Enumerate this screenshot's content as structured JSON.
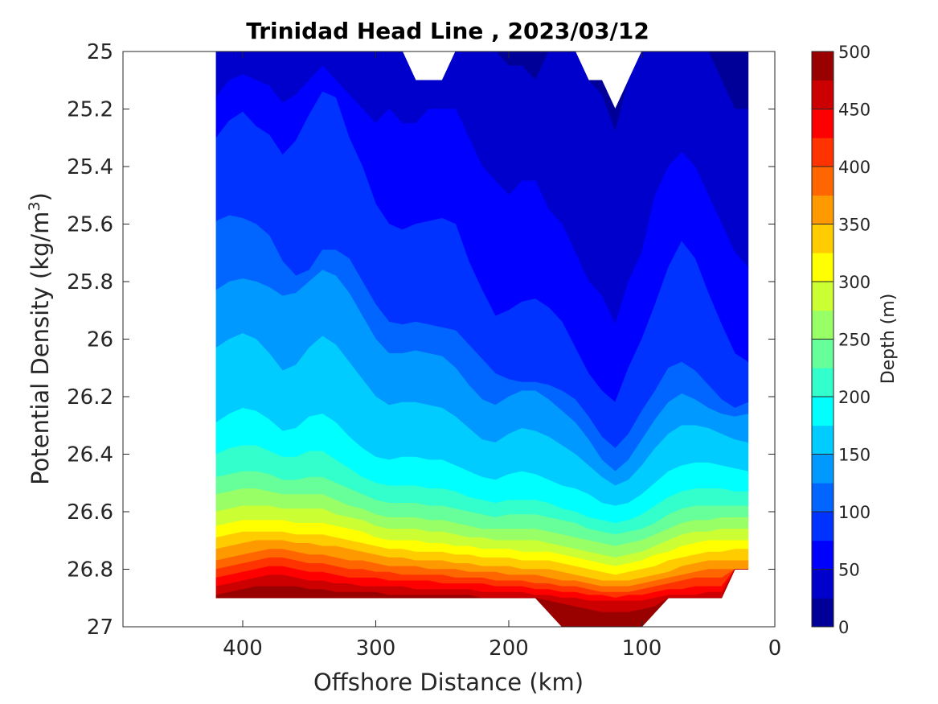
{
  "chart_data": {
    "type": "contour",
    "title": "Trinidad Head Line , 2023/03/12",
    "xlabel": "Offshore Distance (km)",
    "ylabel_main": "Potential Density (kg/m",
    "ylabel_sup": "3",
    "ylabel_tail": ")",
    "xlim": [
      490,
      0
    ],
    "ylim": [
      25,
      27
    ],
    "x_reversed": true,
    "y_reversed": true,
    "x_ticks": [
      "400",
      "300",
      "200",
      "100",
      "0"
    ],
    "y_ticks": [
      "25",
      "25.2",
      "25.4",
      "25.6",
      "25.8",
      "26",
      "26.2",
      "26.4",
      "26.6",
      "26.8",
      "27"
    ],
    "colorbar": {
      "label": "Depth (m)",
      "range": [
        0,
        500
      ],
      "ticks": [
        "0",
        "50",
        "100",
        "150",
        "200",
        "250",
        "300",
        "350",
        "400",
        "450",
        "500"
      ],
      "levels": 20,
      "colormap": "jet"
    },
    "x_stations": [
      420,
      410,
      400,
      390,
      380,
      370,
      360,
      350,
      340,
      330,
      320,
      310,
      300,
      290,
      280,
      270,
      260,
      250,
      240,
      230,
      220,
      210,
      200,
      190,
      180,
      170,
      160,
      150,
      140,
      130,
      120,
      110,
      100,
      90,
      80,
      70,
      60,
      50,
      40,
      30,
      20
    ],
    "depth_contours": [
      {
        "depth": 25,
        "density": [
          24.8,
          24.9,
          24.95,
          25.0,
          24.95,
          24.9,
          24.95,
          25.0,
          24.95,
          24.85,
          24.9,
          24.95,
          24.95,
          25.0,
          25.0,
          25.1,
          25.1,
          25.0,
          24.95,
          24.95,
          25.0,
          25.0,
          25.05,
          25.05,
          25.1,
          25.0,
          25.0,
          25.0,
          25.1,
          25.15,
          25.28,
          25.1,
          25.0,
          25.0,
          24.9,
          25.0,
          25.0,
          25.0,
          25.1,
          25.2,
          25.2
        ]
      },
      {
        "depth": 50,
        "density": [
          25.16,
          25.1,
          25.08,
          25.1,
          25.12,
          25.18,
          25.15,
          25.1,
          25.05,
          25.1,
          25.15,
          25.2,
          25.25,
          25.2,
          25.25,
          25.25,
          25.2,
          25.2,
          25.2,
          25.3,
          25.4,
          25.45,
          25.5,
          25.45,
          25.45,
          25.55,
          25.6,
          25.7,
          25.8,
          25.85,
          25.95,
          25.8,
          25.7,
          25.5,
          25.4,
          25.35,
          25.4,
          25.5,
          25.6,
          25.7,
          25.75
        ]
      },
      {
        "depth": 75,
        "density": [
          25.3,
          25.24,
          25.21,
          25.26,
          25.29,
          25.36,
          25.31,
          25.22,
          25.14,
          25.16,
          25.3,
          25.4,
          25.53,
          25.6,
          25.62,
          25.6,
          25.59,
          25.58,
          25.6,
          25.73,
          25.83,
          25.92,
          25.9,
          25.87,
          25.86,
          25.89,
          25.94,
          26.03,
          26.12,
          26.18,
          26.22,
          26.1,
          26.0,
          25.88,
          25.75,
          25.66,
          25.72,
          25.84,
          25.95,
          26.05,
          26.08
        ]
      },
      {
        "depth": 100,
        "density": [
          25.59,
          25.57,
          25.58,
          25.6,
          25.64,
          25.73,
          25.78,
          25.76,
          25.69,
          25.69,
          25.72,
          25.8,
          25.88,
          25.94,
          25.95,
          25.94,
          25.95,
          25.96,
          25.97,
          26.02,
          26.07,
          26.12,
          26.14,
          26.15,
          26.15,
          26.16,
          26.18,
          26.21,
          26.27,
          26.34,
          26.38,
          26.33,
          26.25,
          26.18,
          26.1,
          26.08,
          26.11,
          26.16,
          26.21,
          26.24,
          26.22
        ]
      },
      {
        "depth": 125,
        "density": [
          25.83,
          25.8,
          25.79,
          25.8,
          25.82,
          25.85,
          25.84,
          25.8,
          25.76,
          25.78,
          25.84,
          25.92,
          26.0,
          26.05,
          26.05,
          26.04,
          26.05,
          26.06,
          26.1,
          26.16,
          26.21,
          26.23,
          26.2,
          26.18,
          26.18,
          26.21,
          26.25,
          26.29,
          26.35,
          26.42,
          26.46,
          26.42,
          26.35,
          26.28,
          26.22,
          26.19,
          26.21,
          26.24,
          26.26,
          26.27,
          26.26
        ]
      },
      {
        "depth": 150,
        "density": [
          26.03,
          26.0,
          25.98,
          26.0,
          26.05,
          26.11,
          26.09,
          26.03,
          25.99,
          26.02,
          26.08,
          26.14,
          26.2,
          26.23,
          26.22,
          26.22,
          26.23,
          26.24,
          26.27,
          26.31,
          26.35,
          26.36,
          26.33,
          26.31,
          26.32,
          26.34,
          26.37,
          26.4,
          26.44,
          26.48,
          26.51,
          26.49,
          26.44,
          26.38,
          26.33,
          26.3,
          26.3,
          26.31,
          26.33,
          26.35,
          26.36
        ]
      },
      {
        "depth": 175,
        "density": [
          26.29,
          26.26,
          26.24,
          26.25,
          26.28,
          26.32,
          26.31,
          26.27,
          26.26,
          26.29,
          26.34,
          26.38,
          26.41,
          26.42,
          26.41,
          26.41,
          26.42,
          26.42,
          26.44,
          26.46,
          26.48,
          26.49,
          26.47,
          26.46,
          26.47,
          26.49,
          26.51,
          26.52,
          26.54,
          26.57,
          26.58,
          26.57,
          26.54,
          26.5,
          26.46,
          26.44,
          26.43,
          26.43,
          26.44,
          26.45,
          26.46
        ]
      },
      {
        "depth": 200,
        "density": [
          26.4,
          26.38,
          26.37,
          26.37,
          26.39,
          26.41,
          26.41,
          26.39,
          26.39,
          26.42,
          26.45,
          26.48,
          26.5,
          26.51,
          26.51,
          26.51,
          26.52,
          26.52,
          26.53,
          26.55,
          26.56,
          26.57,
          26.56,
          26.56,
          26.56,
          26.57,
          26.59,
          26.6,
          26.62,
          26.63,
          26.64,
          26.63,
          26.61,
          26.58,
          26.55,
          26.53,
          26.52,
          26.52,
          26.52,
          26.53,
          26.53
        ]
      },
      {
        "depth": 225,
        "density": [
          26.48,
          26.47,
          26.46,
          26.46,
          26.47,
          26.49,
          26.49,
          26.48,
          26.48,
          26.5,
          26.52,
          26.54,
          26.56,
          26.57,
          26.57,
          26.57,
          26.58,
          26.58,
          26.59,
          26.6,
          26.61,
          26.62,
          26.61,
          26.61,
          26.61,
          26.62,
          26.63,
          26.64,
          26.66,
          26.67,
          26.68,
          26.67,
          26.66,
          26.64,
          26.61,
          26.59,
          26.58,
          26.58,
          26.58,
          26.58,
          26.58
        ]
      },
      {
        "depth": 250,
        "density": [
          26.54,
          26.53,
          26.52,
          26.52,
          26.53,
          26.54,
          26.54,
          26.54,
          26.54,
          26.56,
          26.58,
          26.59,
          26.61,
          26.62,
          26.62,
          26.62,
          26.63,
          26.63,
          26.64,
          26.65,
          26.66,
          26.66,
          26.66,
          26.66,
          26.66,
          26.67,
          26.68,
          26.69,
          26.7,
          26.71,
          26.72,
          26.71,
          26.7,
          26.68,
          26.66,
          26.64,
          26.63,
          26.63,
          26.62,
          26.62,
          26.62
        ]
      },
      {
        "depth": 275,
        "density": [
          26.6,
          26.59,
          26.58,
          26.58,
          26.58,
          26.59,
          26.59,
          26.59,
          26.59,
          26.61,
          26.62,
          26.63,
          26.65,
          26.66,
          26.66,
          26.66,
          26.67,
          26.67,
          26.68,
          26.69,
          26.69,
          26.7,
          26.7,
          26.7,
          26.7,
          26.71,
          26.72,
          26.73,
          26.74,
          26.75,
          26.76,
          26.75,
          26.74,
          26.72,
          26.7,
          26.68,
          26.67,
          26.67,
          26.66,
          26.66,
          26.66
        ]
      },
      {
        "depth": 300,
        "density": [
          26.65,
          26.64,
          26.63,
          26.63,
          26.63,
          26.63,
          26.64,
          26.64,
          26.64,
          26.65,
          26.66,
          26.67,
          26.69,
          26.7,
          26.7,
          26.7,
          26.71,
          26.71,
          26.72,
          26.72,
          26.73,
          26.73,
          26.73,
          26.74,
          26.74,
          26.74,
          26.75,
          26.76,
          26.77,
          26.78,
          26.79,
          26.78,
          26.77,
          26.75,
          26.74,
          26.72,
          26.71,
          26.7,
          26.7,
          26.7,
          26.7
        ]
      },
      {
        "depth": 325,
        "density": [
          26.69,
          26.68,
          26.67,
          26.67,
          26.67,
          26.67,
          26.68,
          26.68,
          26.68,
          26.69,
          26.7,
          26.71,
          26.72,
          26.73,
          26.73,
          26.74,
          26.74,
          26.74,
          26.75,
          26.75,
          26.76,
          26.76,
          26.76,
          26.77,
          26.77,
          26.77,
          26.78,
          26.79,
          26.8,
          26.81,
          26.82,
          26.81,
          26.8,
          26.79,
          26.77,
          26.76,
          26.75,
          26.74,
          26.74,
          26.73,
          26.73
        ]
      },
      {
        "depth": 350,
        "density": [
          26.73,
          26.72,
          26.71,
          26.7,
          26.7,
          26.7,
          26.71,
          26.71,
          26.72,
          26.72,
          26.73,
          26.74,
          26.75,
          26.76,
          26.76,
          26.77,
          26.77,
          26.77,
          26.78,
          26.78,
          26.79,
          26.79,
          26.79,
          26.8,
          26.8,
          26.8,
          26.81,
          26.82,
          26.83,
          26.84,
          26.84,
          26.84,
          26.83,
          26.82,
          26.81,
          26.79,
          26.78,
          26.77,
          26.77,
          26.77,
          26.77
        ]
      },
      {
        "depth": 375,
        "density": [
          26.77,
          26.76,
          26.75,
          26.74,
          26.73,
          26.73,
          26.74,
          26.75,
          26.75,
          26.76,
          26.77,
          26.77,
          26.78,
          26.79,
          26.79,
          26.79,
          26.8,
          26.8,
          26.8,
          26.81,
          26.81,
          26.81,
          26.82,
          26.82,
          26.82,
          26.83,
          26.84,
          26.84,
          26.85,
          26.86,
          26.86,
          26.86,
          26.85,
          26.84,
          26.83,
          26.82,
          26.81,
          26.8,
          26.8,
          26.8,
          26.8
        ]
      },
      {
        "depth": 400,
        "density": [
          26.8,
          26.79,
          26.78,
          26.77,
          26.76,
          26.76,
          26.77,
          26.78,
          26.78,
          26.79,
          26.8,
          26.8,
          26.81,
          26.81,
          26.82,
          26.82,
          26.82,
          26.82,
          26.83,
          26.83,
          26.83,
          26.84,
          26.84,
          26.84,
          26.85,
          26.85,
          26.86,
          26.86,
          26.87,
          26.88,
          26.88,
          26.88,
          26.87,
          26.86,
          26.85,
          26.84,
          26.83,
          26.83,
          26.83,
          26.83,
          26.83
        ]
      },
      {
        "depth": 425,
        "density": [
          26.83,
          26.82,
          26.81,
          26.8,
          26.79,
          26.79,
          26.8,
          26.81,
          26.81,
          26.82,
          26.83,
          26.83,
          26.83,
          26.84,
          26.84,
          26.84,
          26.84,
          26.85,
          26.85,
          26.85,
          26.85,
          26.86,
          26.86,
          26.86,
          26.87,
          26.87,
          26.88,
          26.88,
          26.89,
          26.89,
          26.9,
          26.89,
          26.89,
          26.88,
          26.87,
          26.87,
          26.86,
          26.86,
          26.86,
          26.86,
          26.86
        ]
      },
      {
        "depth": 450,
        "density": [
          26.86,
          26.85,
          26.84,
          26.83,
          26.82,
          26.82,
          26.83,
          26.84,
          26.84,
          26.85,
          26.85,
          26.86,
          26.86,
          26.86,
          26.86,
          26.87,
          26.87,
          26.87,
          26.87,
          26.87,
          26.88,
          26.88,
          26.88,
          26.88,
          26.89,
          26.89,
          26.9,
          26.9,
          26.91,
          26.91,
          26.91,
          26.91,
          26.91,
          26.9,
          26.89,
          26.89,
          26.89,
          26.88,
          26.88,
          26.88,
          26.88
        ]
      },
      {
        "depth": 475,
        "density": [
          26.89,
          26.88,
          26.87,
          26.86,
          26.86,
          26.86,
          26.86,
          26.87,
          26.87,
          26.88,
          26.88,
          26.88,
          26.88,
          26.89,
          26.89,
          26.89,
          26.89,
          26.89,
          26.89,
          26.89,
          26.9,
          26.9,
          26.9,
          26.9,
          26.9,
          26.91,
          26.92,
          26.93,
          26.94,
          26.95,
          26.95,
          26.95,
          26.94,
          26.93,
          26.92,
          26.91,
          26.91,
          26.91,
          26.91,
          26.91,
          26.91
        ]
      }
    ],
    "data_bottom_density": [
      26.9,
      26.9,
      26.9,
      26.9,
      26.9,
      26.9,
      26.9,
      26.9,
      26.9,
      26.9,
      26.9,
      26.9,
      26.9,
      26.9,
      26.9,
      26.9,
      26.9,
      26.9,
      26.9,
      26.9,
      26.9,
      26.9,
      26.9,
      26.9,
      26.9,
      26.95,
      27.0,
      27.0,
      27.0,
      27.0,
      27.0,
      27.0,
      27.0,
      26.95,
      26.9,
      26.9,
      26.9,
      26.9,
      26.9,
      26.8,
      26.8
    ],
    "data_top_density": [
      25.0,
      25.0,
      25.0,
      25.0,
      25.0,
      25.0,
      25.0,
      25.0,
      25.0,
      25.0,
      25.0,
      25.0,
      25.0,
      25.0,
      25.0,
      25.1,
      25.1,
      25.1,
      25.0,
      25.0,
      25.0,
      25.0,
      25.0,
      25.0,
      25.0,
      25.0,
      25.0,
      25.0,
      25.1,
      25.1,
      25.2,
      25.1,
      25.0,
      25.0,
      25.0,
      25.0,
      25.0,
      25.0,
      25.0,
      25.0,
      25.0
    ]
  }
}
